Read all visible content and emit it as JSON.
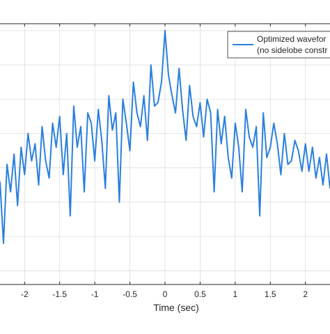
{
  "chart_data": {
    "type": "line",
    "title": "",
    "xlabel": "Time (sec)",
    "ylabel": "",
    "xlim": [
      -2.35,
      2.35
    ],
    "ylim": [
      -37,
      1
    ],
    "x_ticks": [
      -2,
      -1.5,
      -1,
      -0.5,
      0,
      0.5,
      1,
      1.5,
      2
    ],
    "x_tick_labels": [
      "-2",
      "-1.5",
      "-1",
      "-0.5",
      "0",
      "0.5",
      "1",
      "1.5",
      "2"
    ],
    "y_gridlines": [
      -35,
      -30,
      -25,
      -20,
      -15,
      -10,
      -5,
      0
    ],
    "grid": true,
    "legend": {
      "placement": "top-right",
      "entries": [
        "Optimized wavefor",
        "(no sidelobe constr"
      ]
    },
    "series": [
      {
        "name": "Optimized waveform (no sidelobe constraint)",
        "color": "#2a7fe0",
        "x": [
          -2.35,
          -2.3,
          -2.25,
          -2.2,
          -2.15,
          -2.1,
          -2.05,
          -2.0,
          -1.95,
          -1.9,
          -1.85,
          -1.8,
          -1.75,
          -1.7,
          -1.65,
          -1.6,
          -1.55,
          -1.5,
          -1.45,
          -1.4,
          -1.35,
          -1.3,
          -1.25,
          -1.2,
          -1.15,
          -1.1,
          -1.05,
          -1.0,
          -0.95,
          -0.9,
          -0.85,
          -0.8,
          -0.75,
          -0.7,
          -0.65,
          -0.6,
          -0.55,
          -0.5,
          -0.45,
          -0.4,
          -0.35,
          -0.3,
          -0.25,
          -0.2,
          -0.15,
          -0.1,
          -0.05,
          0.0,
          0.05,
          0.1,
          0.15,
          0.2,
          0.25,
          0.3,
          0.35,
          0.4,
          0.45,
          0.5,
          0.55,
          0.6,
          0.65,
          0.7,
          0.75,
          0.8,
          0.85,
          0.9,
          0.95,
          1.0,
          1.05,
          1.1,
          1.15,
          1.2,
          1.25,
          1.3,
          1.35,
          1.4,
          1.45,
          1.5,
          1.55,
          1.6,
          1.65,
          1.7,
          1.75,
          1.8,
          1.85,
          1.9,
          1.95,
          2.0,
          2.05,
          2.1,
          2.15,
          2.2,
          2.25,
          2.3,
          2.35
        ],
        "values": [
          -22.0,
          -31.0,
          -19.5,
          -23.5,
          -18.0,
          -25.5,
          -17.0,
          -21.0,
          -15.0,
          -19.0,
          -16.5,
          -22.5,
          -14.0,
          -19.0,
          -21.5,
          -13.5,
          -17.0,
          -12.5,
          -21.0,
          -15.0,
          -27.0,
          -11.0,
          -17.0,
          -14.0,
          -23.5,
          -12.0,
          -13.5,
          -19.0,
          -11.5,
          -16.0,
          -23.0,
          -9.5,
          -14.5,
          -12.0,
          -25.0,
          -10.0,
          -13.5,
          -17.5,
          -7.5,
          -12.0,
          -14.0,
          -9.5,
          -16.0,
          -5.0,
          -11.0,
          -10.5,
          -7.5,
          0.0,
          -6.5,
          -9.5,
          -12.0,
          -5.5,
          -11.5,
          -16.0,
          -8.0,
          -12.5,
          -14.0,
          -10.5,
          -15.5,
          -10.0,
          -12.0,
          -23.5,
          -11.5,
          -16.5,
          -12.5,
          -18.5,
          -21.5,
          -13.5,
          -17.0,
          -23.5,
          -11.5,
          -15.5,
          -17.0,
          -14.0,
          -27.0,
          -12.0,
          -18.5,
          -17.0,
          -13.5,
          -16.5,
          -21.0,
          -15.0,
          -19.5,
          -19.0,
          -16.0,
          -17.5,
          -20.5,
          -16.5,
          -20.5,
          -17.0,
          -21.5,
          -18.5,
          -22.5,
          -18.0,
          -23.0
        ]
      }
    ]
  }
}
